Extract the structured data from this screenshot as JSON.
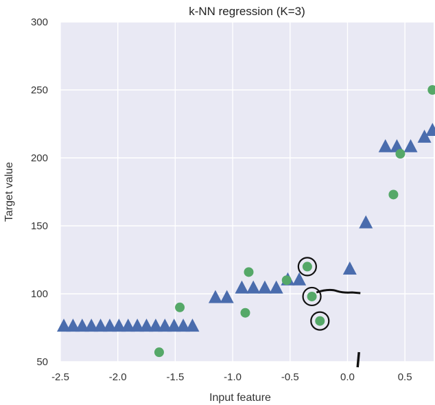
{
  "chart_data": {
    "type": "scatter",
    "title": "k-NN regression (K=3)",
    "xlabel": "Input feature",
    "ylabel": "Target value",
    "xlim": [
      -2.5,
      0.75
    ],
    "ylim": [
      50,
      300
    ],
    "x_ticks": [
      -2.5,
      -2.0,
      -1.5,
      -1.0,
      -0.5,
      0.0,
      0.5
    ],
    "x_tick_labels": [
      "-2.5",
      "-2.0",
      "-1.5",
      "-1.0",
      "-0.5",
      "0.0",
      "0.5"
    ],
    "y_ticks": [
      50,
      100,
      150,
      200,
      250,
      300
    ],
    "y_tick_labels": [
      "50",
      "100",
      "150",
      "200",
      "250",
      "300"
    ],
    "grid": true,
    "background_color": "#e9e9f4",
    "grid_color": "#ffffff",
    "series": [
      {
        "marker": "triangle",
        "color": "#4a6cad",
        "points": [
          {
            "x": -2.47,
            "y": 76
          },
          {
            "x": -2.39,
            "y": 76
          },
          {
            "x": -2.31,
            "y": 76
          },
          {
            "x": -2.23,
            "y": 76
          },
          {
            "x": -2.15,
            "y": 76
          },
          {
            "x": -2.07,
            "y": 76
          },
          {
            "x": -1.99,
            "y": 76
          },
          {
            "x": -1.91,
            "y": 76
          },
          {
            "x": -1.83,
            "y": 76
          },
          {
            "x": -1.75,
            "y": 76
          },
          {
            "x": -1.67,
            "y": 76
          },
          {
            "x": -1.59,
            "y": 76
          },
          {
            "x": -1.51,
            "y": 76
          },
          {
            "x": -1.43,
            "y": 76
          },
          {
            "x": -1.35,
            "y": 76
          },
          {
            "x": -1.15,
            "y": 97
          },
          {
            "x": -1.05,
            "y": 97
          },
          {
            "x": -0.92,
            "y": 104
          },
          {
            "x": -0.82,
            "y": 104
          },
          {
            "x": -0.72,
            "y": 104
          },
          {
            "x": -0.62,
            "y": 104
          },
          {
            "x": -0.52,
            "y": 110
          },
          {
            "x": -0.42,
            "y": 110
          },
          {
            "x": 0.02,
            "y": 118
          },
          {
            "x": 0.16,
            "y": 152
          },
          {
            "x": 0.33,
            "y": 208
          },
          {
            "x": 0.43,
            "y": 208
          },
          {
            "x": 0.55,
            "y": 208
          },
          {
            "x": 0.67,
            "y": 215
          },
          {
            "x": 0.74,
            "y": 220
          }
        ]
      },
      {
        "marker": "circle",
        "color": "#55a868",
        "points": [
          {
            "x": -1.64,
            "y": 57
          },
          {
            "x": -1.46,
            "y": 90
          },
          {
            "x": -0.89,
            "y": 86
          },
          {
            "x": -0.86,
            "y": 116
          },
          {
            "x": -0.53,
            "y": 110
          },
          {
            "x": -0.35,
            "y": 120
          },
          {
            "x": -0.31,
            "y": 98
          },
          {
            "x": -0.24,
            "y": 80
          },
          {
            "x": 0.4,
            "y": 173
          },
          {
            "x": 0.46,
            "y": 203
          },
          {
            "x": 0.74,
            "y": 250
          }
        ]
      }
    ],
    "annotations": {
      "circled_points": [
        {
          "x": -0.35,
          "y": 120
        },
        {
          "x": -0.31,
          "y": 98
        },
        {
          "x": -0.24,
          "y": 80
        }
      ]
    }
  }
}
